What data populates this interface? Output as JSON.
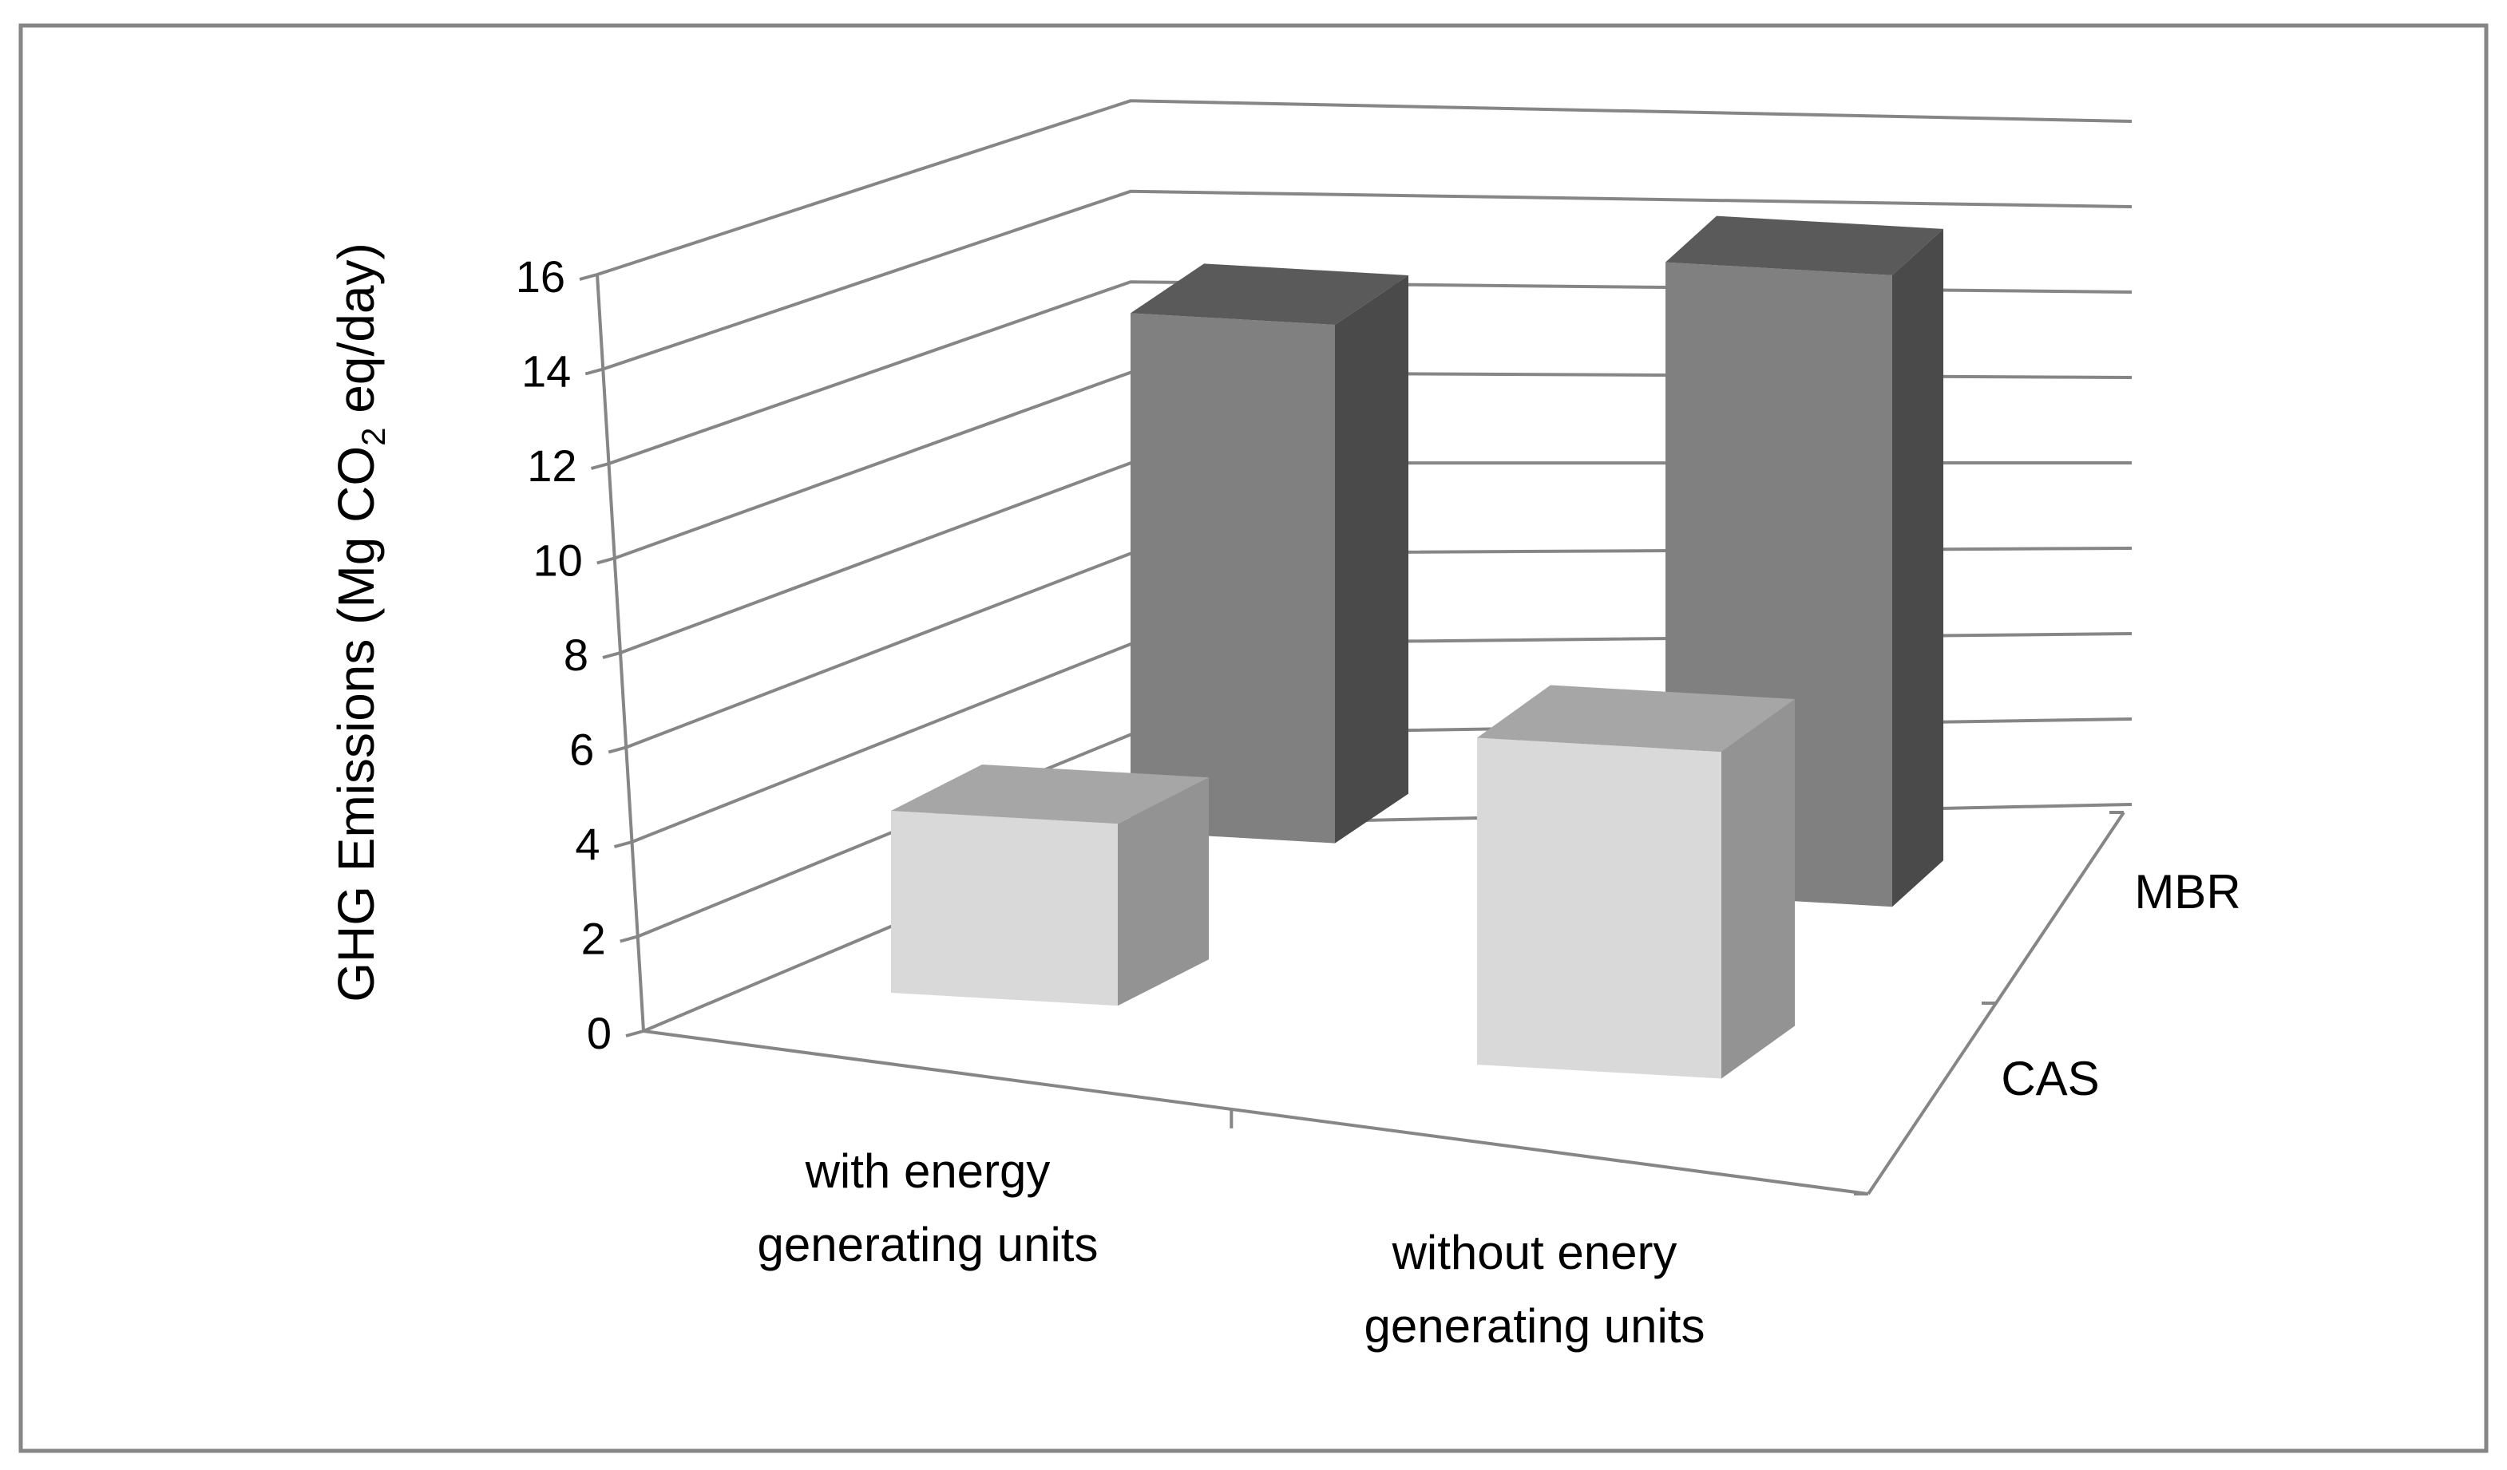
{
  "chart_data": {
    "type": "bar",
    "style": "3d-clustered-column",
    "title": "",
    "ylabel_main": "GHG Emissions (Mg CO",
    "ylabel_sub": "2",
    "ylabel_tail": " eq/day)",
    "xlabel": "",
    "ylim": [
      0,
      16
    ],
    "y_ticks": [
      "0",
      "2",
      "4",
      "6",
      "8",
      "10",
      "12",
      "14",
      "16"
    ],
    "grid": true,
    "categories": [
      {
        "line1": "with energy",
        "line2": "generating units"
      },
      {
        "line1": "without enery",
        "line2": "generating units"
      }
    ],
    "series": [
      {
        "name": "MBR",
        "values": [
          11.2,
          13.3
        ]
      },
      {
        "name": "CAS",
        "values": [
          3.8,
          7.0
        ]
      }
    ],
    "colors": {
      "MBR": {
        "front": "#808080",
        "top": "#5a5a5a",
        "side": "#4a4a4a"
      },
      "CAS": {
        "front": "#d9d9d9",
        "top": "#a6a6a6",
        "side": "#939393"
      },
      "axis": "#868686",
      "gridline": "#868686",
      "frame": "#868686"
    }
  }
}
